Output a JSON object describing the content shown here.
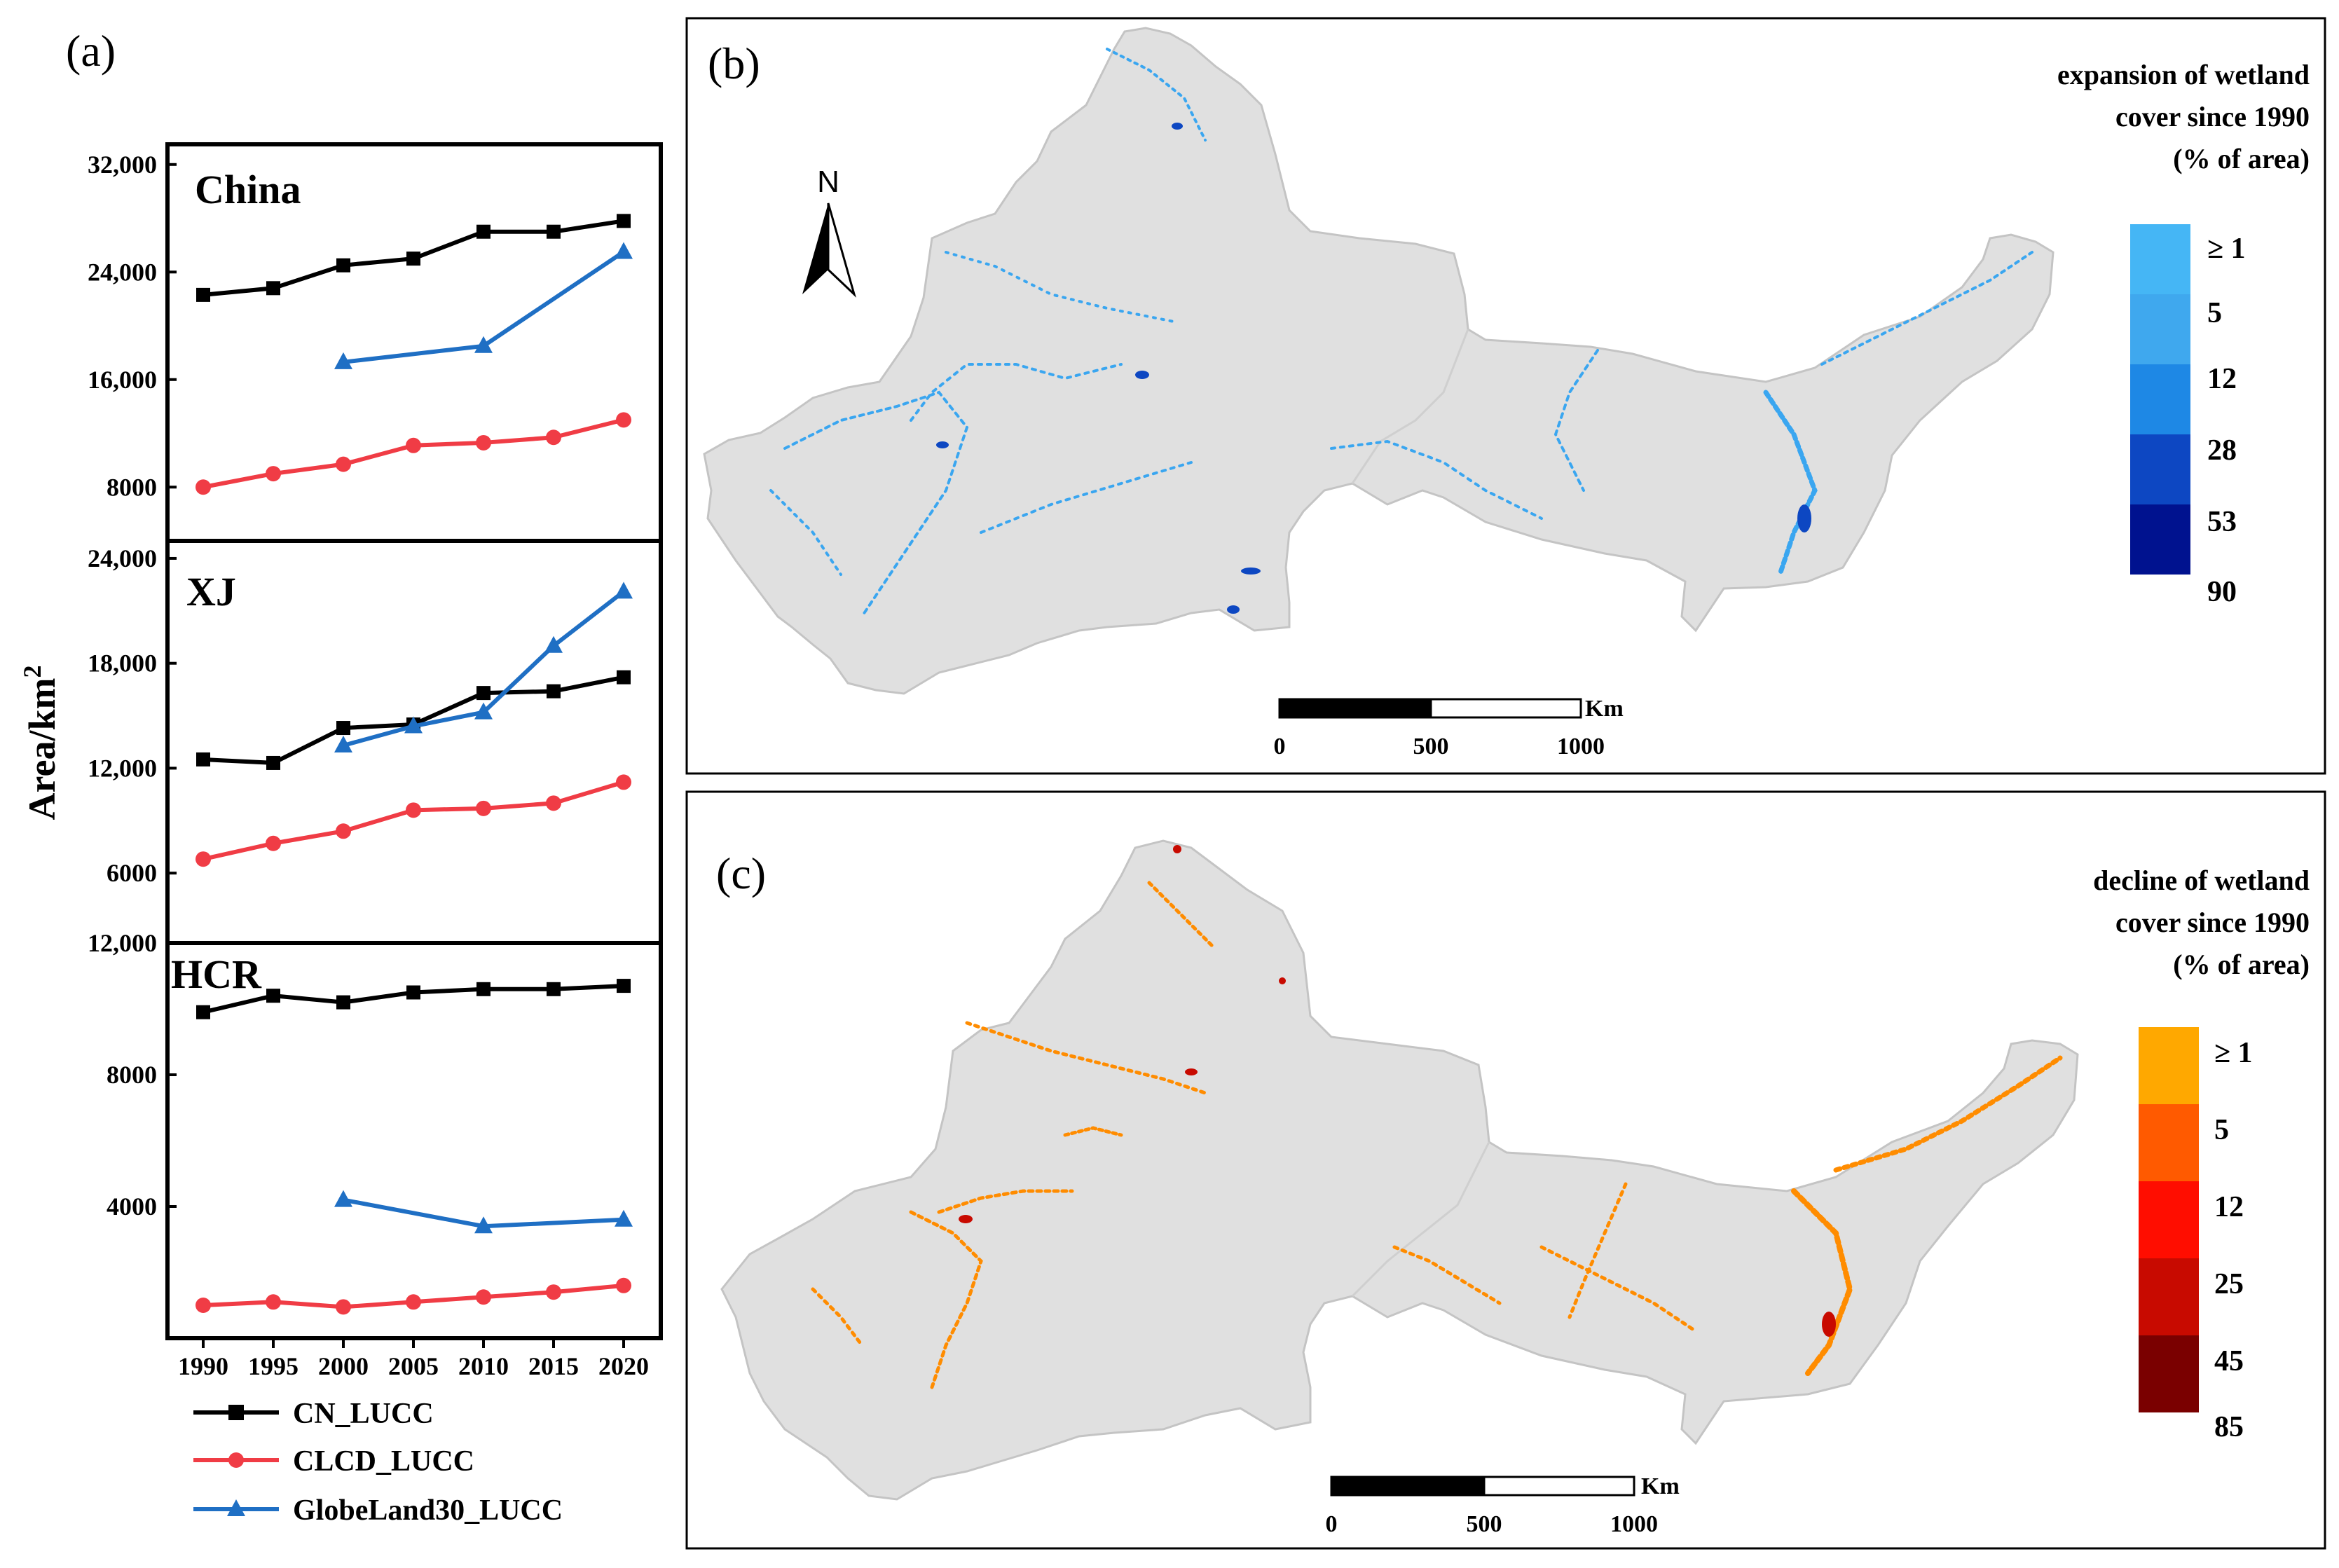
{
  "panel_a": {
    "label": "(a)",
    "ylabel": "Area/km",
    "ylabel_sup": "2",
    "legend": [
      {
        "name": "CN_LUCC",
        "color": "#000000",
        "marker": "square"
      },
      {
        "name": "CLCD_LUCC",
        "color": "#f03c45",
        "marker": "circle"
      },
      {
        "name": "GlobeLand30_LUCC",
        "color": "#1f6fc4",
        "marker": "triangle"
      }
    ]
  },
  "chart_data": [
    {
      "type": "line",
      "title": "China",
      "x": [
        1990,
        1995,
        2000,
        2005,
        2010,
        2015,
        2020
      ],
      "xlabel": "",
      "ylabel": "Area/km2",
      "yticks": [
        "8000",
        "16,000",
        "24,000",
        "32,000"
      ],
      "ytick_values": [
        8000,
        16000,
        24000,
        32000
      ],
      "ylim": [
        4000,
        33500
      ],
      "series": [
        {
          "name": "CN_LUCC",
          "x": [
            1990,
            1995,
            2000,
            2005,
            2010,
            2015,
            2020
          ],
          "values": [
            22300,
            22800,
            24500,
            25000,
            27000,
            27000,
            27800
          ]
        },
        {
          "name": "CLCD_LUCC",
          "x": [
            1990,
            1995,
            2000,
            2005,
            2010,
            2015,
            2020
          ],
          "values": [
            8000,
            9000,
            9700,
            11100,
            11300,
            11700,
            13000
          ]
        },
        {
          "name": "GlobeLand30_LUCC",
          "x": [
            2000,
            2010,
            2020
          ],
          "values": [
            17300,
            18500,
            25500
          ]
        }
      ]
    },
    {
      "type": "line",
      "title": "XJ",
      "x": [
        1990,
        1995,
        2000,
        2005,
        2010,
        2015,
        2020
      ],
      "xlabel": "",
      "ylabel": "Area/km2",
      "yticks": [
        "6000",
        "12,000",
        "18,000",
        "24,000"
      ],
      "ytick_values": [
        6000,
        12000,
        18000,
        24000
      ],
      "ylim": [
        2000,
        25000
      ],
      "series": [
        {
          "name": "CN_LUCC",
          "x": [
            1990,
            1995,
            2000,
            2005,
            2010,
            2015,
            2020
          ],
          "values": [
            12500,
            12300,
            14300,
            14500,
            16300,
            16400,
            17200
          ]
        },
        {
          "name": "CLCD_LUCC",
          "x": [
            1990,
            1995,
            2000,
            2005,
            2010,
            2015,
            2020
          ],
          "values": [
            6800,
            7700,
            8400,
            9600,
            9700,
            10000,
            11200
          ]
        },
        {
          "name": "GlobeLand30_LUCC",
          "x": [
            2000,
            2005,
            2010,
            2015,
            2020
          ],
          "values": [
            13300,
            14400,
            15200,
            19000,
            22100
          ]
        }
      ]
    },
    {
      "type": "line",
      "title": "HCR",
      "x": [
        1990,
        1995,
        2000,
        2005,
        2010,
        2015,
        2020
      ],
      "xlabel": "",
      "ylabel": "Area/km2",
      "yticks": [
        "4000",
        "8000",
        "12,000"
      ],
      "ytick_values": [
        4000,
        8000,
        12000
      ],
      "ylim": [
        0,
        12000
      ],
      "xtick_labels": [
        "1990",
        "1995",
        "2000",
        "2005",
        "2010",
        "2015",
        "2020"
      ],
      "series": [
        {
          "name": "CN_LUCC",
          "x": [
            1990,
            1995,
            2000,
            2005,
            2010,
            2015,
            2020
          ],
          "values": [
            9900,
            10400,
            10200,
            10500,
            10600,
            10600,
            10700
          ]
        },
        {
          "name": "CLCD_LUCC",
          "x": [
            1990,
            1995,
            2000,
            2005,
            2010,
            2015,
            2020
          ],
          "values": [
            1000,
            1100,
            950,
            1100,
            1250,
            1400,
            1600
          ]
        },
        {
          "name": "GlobeLand30_LUCC",
          "x": [
            2000,
            2010,
            2020
          ],
          "values": [
            4200,
            3400,
            3600
          ]
        }
      ]
    }
  ],
  "panel_b": {
    "label": "(b)",
    "title_lines": [
      "expansion of wetland",
      "cover since 1990",
      "(% of area)"
    ],
    "north": "N",
    "legend_classes": [
      "≥ 1",
      "5",
      "12",
      "28",
      "53",
      "90"
    ],
    "legend_colors": [
      "#45b6f5",
      "#3fa8ee",
      "#1e88e5",
      "#0d47c2",
      "#00128f"
    ],
    "scale_unit": "Km",
    "scale_ticks": [
      "0",
      "500",
      "1000"
    ]
  },
  "panel_c": {
    "label": "(c)",
    "title_lines": [
      "decline of wetland",
      "cover since 1990",
      "(% of area)"
    ],
    "legend_classes": [
      "≥ 1",
      "5",
      "12",
      "25",
      "45",
      "85"
    ],
    "legend_colors": [
      "#ffa800",
      "#ff5a00",
      "#ff0d00",
      "#c80a00",
      "#7a0000"
    ],
    "scale_unit": "Km",
    "scale_ticks": [
      "0",
      "500",
      "1000"
    ]
  },
  "colors": {
    "land": "#e0e0e0",
    "land_edge": "#c8c8c8",
    "frame": "#000000"
  }
}
